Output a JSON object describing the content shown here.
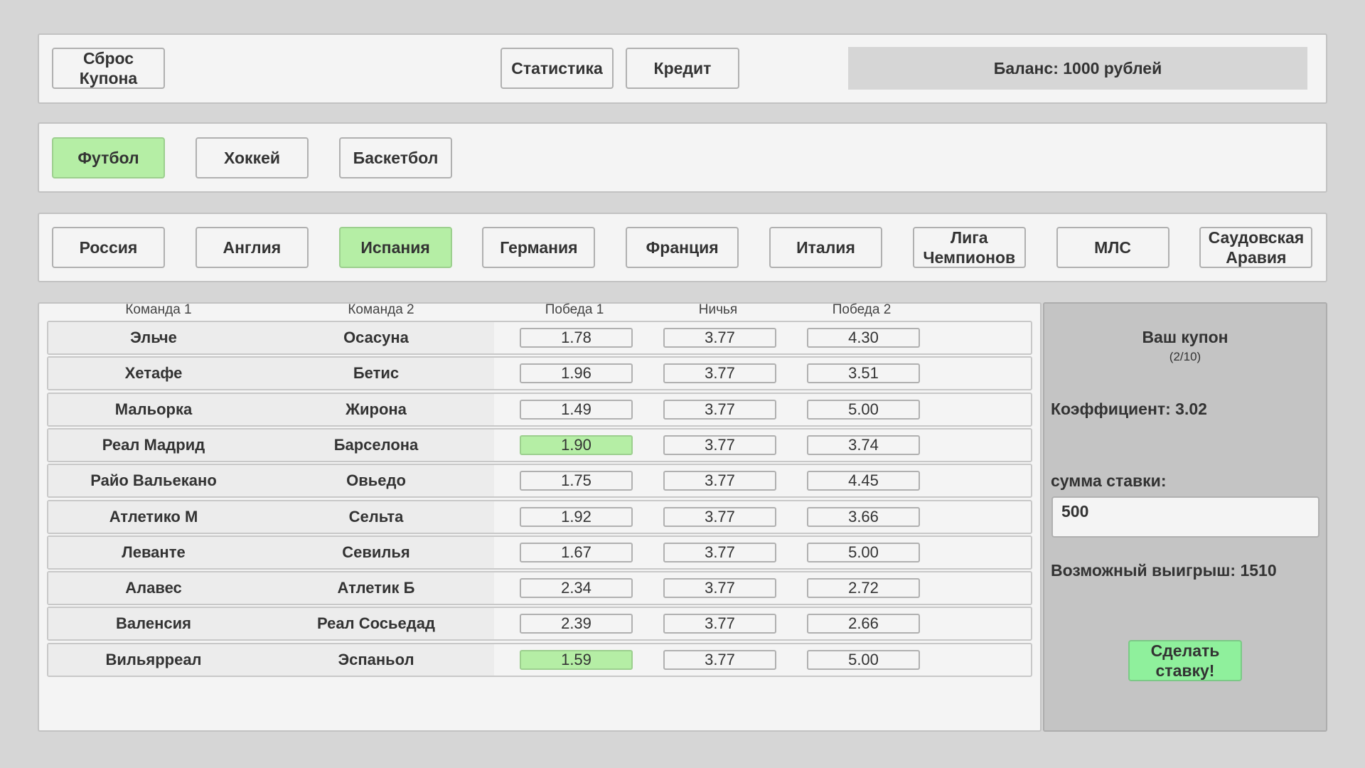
{
  "top": {
    "reset_label": "Сброс\nКупона",
    "stats_label": "Статистика",
    "credit_label": "Кредит",
    "balance": "Баланс: 1000 рублей"
  },
  "sports": [
    {
      "label": "Футбол",
      "active": true
    },
    {
      "label": "Хоккей",
      "active": false
    },
    {
      "label": "Баскетбол",
      "active": false
    }
  ],
  "leagues": [
    {
      "label": "Россия",
      "active": false
    },
    {
      "label": "Англия",
      "active": false
    },
    {
      "label": "Испания",
      "active": true
    },
    {
      "label": "Германия",
      "active": false
    },
    {
      "label": "Франция",
      "active": false
    },
    {
      "label": "Италия",
      "active": false
    },
    {
      "label": "Лига\nЧемпионов",
      "active": false
    },
    {
      "label": "МЛС",
      "active": false
    },
    {
      "label": "Саудовская\nАравия",
      "active": false
    }
  ],
  "table": {
    "headers": [
      "Команда 1",
      "Команда 2",
      "Победа 1",
      "Ничья",
      "Победа 2"
    ],
    "rows": [
      {
        "team1": "Эльче",
        "team2": "Осасуна",
        "odds": [
          "1.78",
          "3.77",
          "4.30"
        ],
        "selected": null
      },
      {
        "team1": "Хетафе",
        "team2": "Бетис",
        "odds": [
          "1.96",
          "3.77",
          "3.51"
        ],
        "selected": null
      },
      {
        "team1": "Мальорка",
        "team2": "Жирона",
        "odds": [
          "1.49",
          "3.77",
          "5.00"
        ],
        "selected": null
      },
      {
        "team1": "Реал Мадрид",
        "team2": "Барселона",
        "odds": [
          "1.90",
          "3.77",
          "3.74"
        ],
        "selected": 0
      },
      {
        "team1": "Райо Вальекано",
        "team2": "Овьедо",
        "odds": [
          "1.75",
          "3.77",
          "4.45"
        ],
        "selected": null
      },
      {
        "team1": "Атлетико М",
        "team2": "Сельта",
        "odds": [
          "1.92",
          "3.77",
          "3.66"
        ],
        "selected": null
      },
      {
        "team1": "Леванте",
        "team2": "Севилья",
        "odds": [
          "1.67",
          "3.77",
          "5.00"
        ],
        "selected": null
      },
      {
        "team1": "Алавес",
        "team2": "Атлетик Б",
        "odds": [
          "2.34",
          "3.77",
          "2.72"
        ],
        "selected": null
      },
      {
        "team1": "Валенсия",
        "team2": "Реал Сосьедад",
        "odds": [
          "2.39",
          "3.77",
          "2.66"
        ],
        "selected": null
      },
      {
        "team1": "Вильярреал",
        "team2": "Эспаньол",
        "odds": [
          "1.59",
          "3.77",
          "5.00"
        ],
        "selected": 0
      }
    ]
  },
  "coupon": {
    "title": "Ваш купон",
    "count": "(2/10)",
    "coefficient": "Коэффициент: 3.02",
    "stake_label": "сумма ставки:",
    "stake_value": "500",
    "possible_win": "Возможный выигрыш: 1510",
    "submit_label": "Сделать\nставку!"
  }
}
